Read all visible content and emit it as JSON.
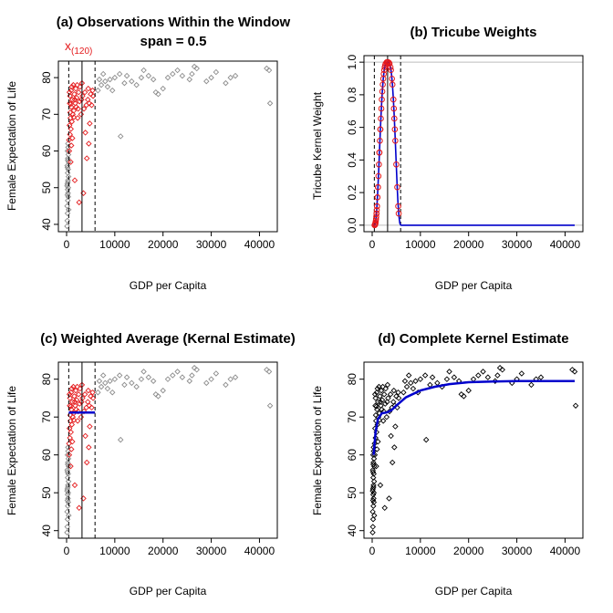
{
  "colors": {
    "gray": "#8c8c8c",
    "red": "#e41a1c",
    "blue": "#0000cc",
    "black": "#000000",
    "refline": "#bebebe"
  },
  "chart_data": [
    {
      "id": "a",
      "type": "scatter",
      "title": "(a) Observations Within the Window",
      "subtitle": "span = 0.5",
      "focal_label": "x",
      "focal_subscript": "(120)",
      "xlabel": "GDP per Capita",
      "ylabel": "Female Expectation of Life",
      "xlim": [
        -1700,
        43700
      ],
      "ylim": [
        38,
        84.5
      ],
      "xticks": [
        0,
        10000,
        20000,
        30000,
        40000
      ],
      "yticks": [
        40,
        50,
        60,
        70,
        80
      ],
      "xtick_labels": [
        "0",
        "10000",
        "20000",
        "30000",
        "40000"
      ],
      "ytick_labels": [
        "40",
        "50",
        "60",
        "70",
        "80"
      ],
      "window": [
        450,
        5900
      ],
      "focal_x": 3200
    },
    {
      "id": "b",
      "type": "line",
      "title": "(b) Tricube Weights",
      "xlabel": "GDP per Capita",
      "ylabel": "Tricube Kernel Weight",
      "xlim": [
        -1700,
        43700
      ],
      "ylim": [
        -0.04,
        1.04
      ],
      "xticks": [
        0,
        10000,
        20000,
        30000,
        40000
      ],
      "yticks": [
        0,
        0.2,
        0.4,
        0.6,
        0.8,
        1.0
      ],
      "xtick_labels": [
        "0",
        "10000",
        "20000",
        "30000",
        "40000"
      ],
      "ytick_labels": [
        "0.0",
        "0.2",
        "0.4",
        "0.6",
        "0.8",
        "1.0"
      ],
      "window": [
        450,
        5900
      ],
      "focal_x": 3200,
      "reference_lines": [
        0,
        1
      ]
    },
    {
      "id": "c",
      "type": "scatter",
      "title": "(c) Weighted Average (Kernal Estimate)",
      "xlabel": "GDP per Capita",
      "ylabel": "Female Expectation of Life",
      "xlim": [
        -1700,
        43700
      ],
      "ylim": [
        38,
        84.5
      ],
      "xticks": [
        0,
        10000,
        20000,
        30000,
        40000
      ],
      "yticks": [
        40,
        50,
        60,
        70,
        80
      ],
      "xtick_labels": [
        "0",
        "10000",
        "20000",
        "30000",
        "40000"
      ],
      "ytick_labels": [
        "40",
        "50",
        "60",
        "70",
        "80"
      ],
      "window": [
        450,
        5900
      ],
      "focal_x": 3200,
      "estimate": 71.2
    },
    {
      "id": "d",
      "type": "scatter",
      "title": "(d) Complete Kernel Estimate",
      "xlabel": "GDP per Capita",
      "ylabel": "Female Expectation of Life",
      "xlim": [
        -1700,
        43700
      ],
      "ylim": [
        38,
        84.5
      ],
      "xticks": [
        0,
        10000,
        20000,
        30000,
        40000
      ],
      "yticks": [
        40,
        50,
        60,
        70,
        80
      ],
      "xtick_labels": [
        "0",
        "10000",
        "20000",
        "30000",
        "40000"
      ],
      "ytick_labels": [
        "40",
        "50",
        "60",
        "70",
        "80"
      ],
      "curve": [
        [
          300,
          60
        ],
        [
          700,
          66
        ],
        [
          1200,
          69.5
        ],
        [
          2000,
          71
        ],
        [
          3000,
          71.2
        ],
        [
          4000,
          71.8
        ],
        [
          5000,
          73
        ],
        [
          7000,
          75.2
        ],
        [
          10000,
          77
        ],
        [
          13000,
          78
        ],
        [
          16000,
          78.7
        ],
        [
          20000,
          79.2
        ],
        [
          25000,
          79.4
        ],
        [
          30000,
          79.5
        ],
        [
          35000,
          79.5
        ],
        [
          40000,
          79.5
        ],
        [
          42000,
          79.5
        ]
      ]
    }
  ],
  "observations": [
    [
      100,
      39.5
    ],
    [
      150,
      41
    ],
    [
      200,
      43
    ],
    [
      120,
      45
    ],
    [
      250,
      46.5
    ],
    [
      180,
      48
    ],
    [
      300,
      48.5
    ],
    [
      220,
      49.5
    ],
    [
      350,
      50
    ],
    [
      160,
      51
    ],
    [
      280,
      52
    ],
    [
      400,
      53
    ],
    [
      230,
      54
    ],
    [
      330,
      55
    ],
    [
      140,
      56
    ],
    [
      420,
      57
    ],
    [
      260,
      58
    ],
    [
      380,
      59
    ],
    [
      200,
      60
    ],
    [
      320,
      61
    ],
    [
      190,
      55.5
    ],
    [
      270,
      51.5
    ],
    [
      350,
      47.5
    ],
    [
      430,
      44
    ],
    [
      110,
      50.5
    ],
    [
      240,
      57.5
    ],
    [
      300,
      62
    ],
    [
      500,
      63
    ],
    [
      700,
      64.5
    ],
    [
      900,
      66
    ],
    [
      600,
      67
    ],
    [
      1100,
      68
    ],
    [
      800,
      69
    ],
    [
      1300,
      70
    ],
    [
      1500,
      71
    ],
    [
      1000,
      72
    ],
    [
      1800,
      73
    ],
    [
      1200,
      74
    ],
    [
      2100,
      74.5
    ],
    [
      700,
      75
    ],
    [
      1600,
      75.5
    ],
    [
      2500,
      76
    ],
    [
      950,
      76.5
    ],
    [
      1900,
      77
    ],
    [
      2800,
      77.5
    ],
    [
      1400,
      78
    ],
    [
      3200,
      78.5
    ],
    [
      550,
      60
    ],
    [
      850,
      57
    ],
    [
      1700,
      52
    ],
    [
      2600,
      46
    ],
    [
      3500,
      48.5
    ],
    [
      4200,
      58
    ],
    [
      4600,
      62
    ],
    [
      3900,
      65
    ],
    [
      4800,
      67.5
    ],
    [
      2300,
      69
    ],
    [
      3000,
      70
    ],
    [
      3600,
      71.5
    ],
    [
      4100,
      72.5
    ],
    [
      2700,
      73.5
    ],
    [
      4400,
      74
    ],
    [
      3300,
      75
    ],
    [
      5000,
      75.5
    ],
    [
      3800,
      76
    ],
    [
      5400,
      76.5
    ],
    [
      4500,
      77
    ],
    [
      1000,
      61.5
    ],
    [
      1200,
      63.5
    ],
    [
      750,
      70.5
    ],
    [
      650,
      73
    ],
    [
      2000,
      72
    ],
    [
      2400,
      71.5
    ],
    [
      1700,
      74
    ],
    [
      3100,
      74
    ],
    [
      4700,
      73
    ],
    [
      5500,
      75
    ],
    [
      5200,
      72.5
    ],
    [
      600,
      76
    ],
    [
      1100,
      77.5
    ],
    [
      2200,
      78
    ],
    [
      900,
      72.8
    ],
    [
      1500,
      69.2
    ],
    [
      6500,
      76.5
    ],
    [
      7200,
      78
    ],
    [
      8000,
      79
    ],
    [
      9000,
      79.5
    ],
    [
      10000,
      80
    ],
    [
      11000,
      81
    ],
    [
      12500,
      80.5
    ],
    [
      13500,
      79
    ],
    [
      14500,
      78
    ],
    [
      15500,
      80
    ],
    [
      17000,
      80.5
    ],
    [
      18000,
      79.5
    ],
    [
      19000,
      75.5
    ],
    [
      20000,
      77
    ],
    [
      21000,
      80
    ],
    [
      22000,
      81
    ],
    [
      23000,
      82
    ],
    [
      24000,
      80.5
    ],
    [
      25500,
      79.5
    ],
    [
      26000,
      81
    ],
    [
      27000,
      82.5
    ],
    [
      29000,
      79
    ],
    [
      30000,
      80
    ],
    [
      31000,
      81.5
    ],
    [
      33000,
      78.5
    ],
    [
      35000,
      80.5
    ],
    [
      41500,
      82.5
    ],
    [
      42000,
      82
    ],
    [
      42200,
      73
    ],
    [
      8500,
      77.5
    ],
    [
      7600,
      81
    ],
    [
      16000,
      82
    ],
    [
      26500,
      83
    ],
    [
      11200,
      64
    ],
    [
      9500,
      76.5
    ],
    [
      6800,
      79.5
    ],
    [
      12000,
      78.5
    ],
    [
      18500,
      76
    ],
    [
      34000,
      80
    ]
  ]
}
